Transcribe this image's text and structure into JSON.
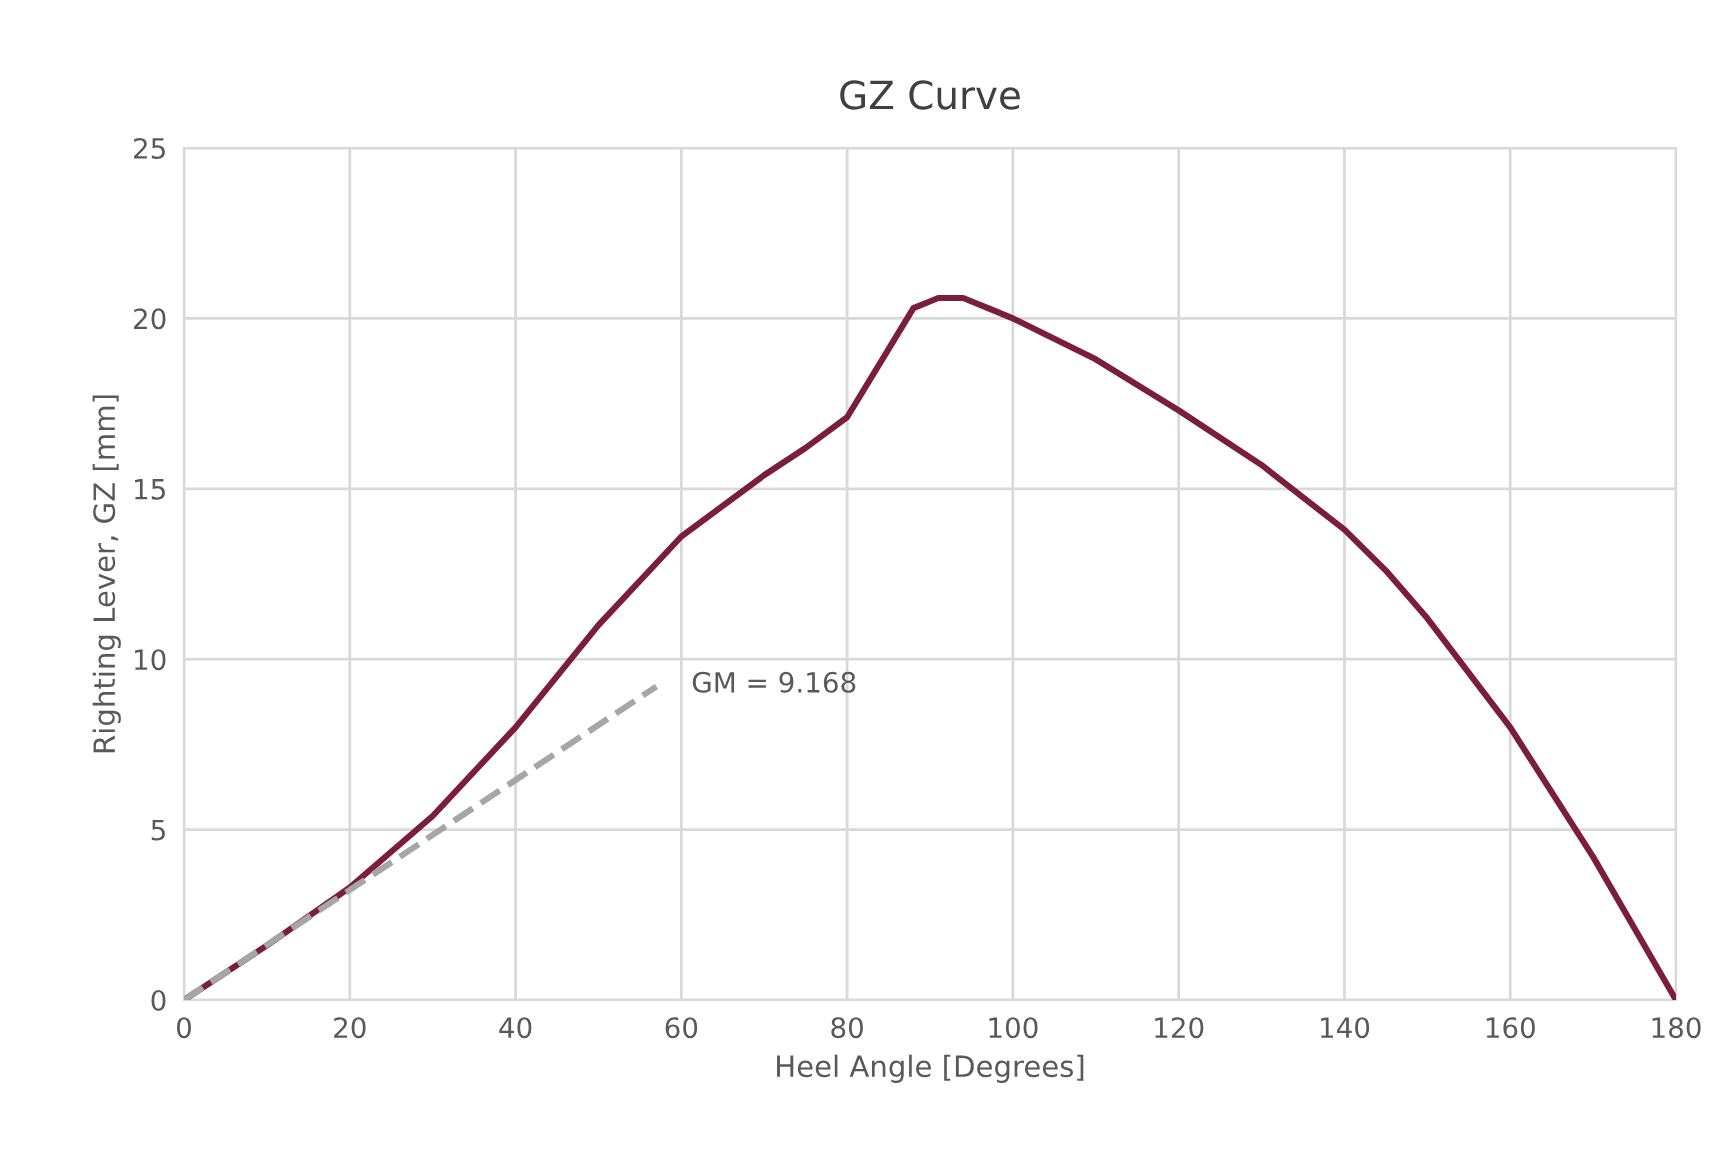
{
  "chart_data": {
    "type": "line",
    "title": "GZ Curve",
    "xlabel": "Heel Angle [Degrees]",
    "ylabel": "Righting Lever, GZ [mm]",
    "series": [
      {
        "color": "#7b1e3c",
        "line_style": "solid",
        "x": [
          0,
          10,
          20,
          30,
          40,
          50,
          60,
          70,
          75,
          80,
          85,
          88,
          91,
          94,
          97,
          100,
          110,
          120,
          130,
          140,
          145,
          150,
          160,
          170,
          180
        ],
        "values": [
          0,
          1.6,
          3.3,
          5.4,
          8,
          11,
          13.6,
          15.4,
          16.2,
          17.1,
          19.1,
          20.3,
          20.6,
          20.6,
          20.3,
          20,
          18.8,
          17.3,
          15.7,
          13.8,
          12.6,
          11.2,
          8,
          4.2,
          0
        ]
      },
      {
        "color": "#a6a6a6",
        "line_style": "dashed",
        "x": [
          0,
          57
        ],
        "values": [
          0,
          9.2
        ]
      }
    ],
    "annotations": [
      "GM = 9.168"
    ],
    "xlim": [
      0,
      180
    ],
    "xticks": [
      0,
      20,
      40,
      60,
      80,
      100,
      120,
      140,
      160,
      180
    ],
    "ylim": [
      0,
      25
    ],
    "yticks": [
      0,
      5,
      10,
      15,
      20,
      25
    ],
    "grid": true,
    "legend": false
  }
}
